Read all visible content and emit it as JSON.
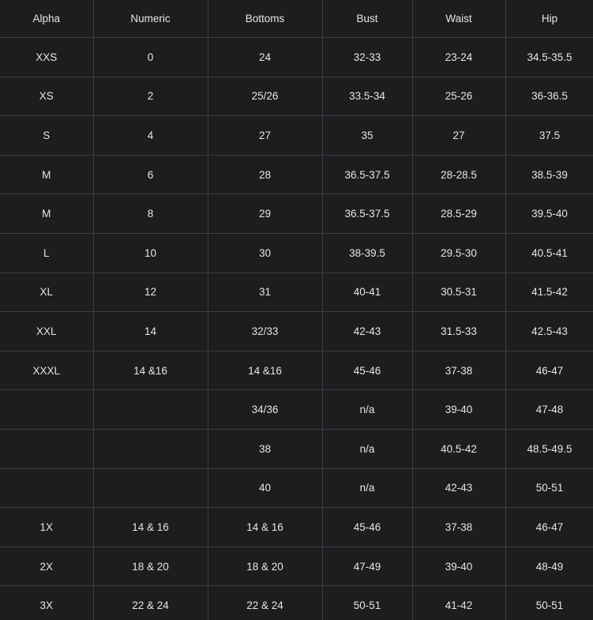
{
  "table": {
    "header": [
      "Alpha",
      "Numeric",
      "Bottoms",
      "Bust",
      "Waist",
      "Hip"
    ],
    "rows": [
      [
        "XXS",
        "0",
        "24",
        "32-33",
        "23-24",
        "34.5-35.5"
      ],
      [
        "XS",
        "2",
        "25/26",
        "33.5-34",
        "25-26",
        "36-36.5"
      ],
      [
        "S",
        "4",
        "27",
        "35",
        "27",
        "37.5"
      ],
      [
        "M",
        "6",
        "28",
        "36.5-37.5",
        "28-28.5",
        "38.5-39"
      ],
      [
        "M",
        "8",
        "29",
        "36.5-37.5",
        "28.5-29",
        "39.5-40"
      ],
      [
        "L",
        "10",
        "30",
        "38-39.5",
        "29.5-30",
        "40.5-41"
      ],
      [
        "XL",
        "12",
        "31",
        "40-41",
        "30.5-31",
        "41.5-42"
      ],
      [
        "XXL",
        "14",
        "32/33",
        "42-43",
        "31.5-33",
        "42.5-43"
      ],
      [
        "XXXL",
        "14 &16",
        "14 &16",
        "45-46",
        "37-38",
        "46-47"
      ],
      [
        null,
        null,
        "34/36",
        "n/a",
        "39-40",
        "47-48"
      ],
      [
        null,
        null,
        "38",
        "n/a",
        "40.5-42",
        "48.5-49.5"
      ],
      [
        null,
        null,
        "40",
        "n/a",
        "42-43",
        "50-51"
      ],
      [
        "1X",
        "14 & 16",
        "14 & 16",
        "45-46",
        "37-38",
        "46-47"
      ],
      [
        "2X",
        "18 & 20",
        "18 & 20",
        "47-49",
        "39-40",
        "48-49"
      ],
      [
        "3X",
        "22 & 24",
        "22 & 24",
        "50-51",
        "41-42",
        "50-51"
      ]
    ]
  }
}
